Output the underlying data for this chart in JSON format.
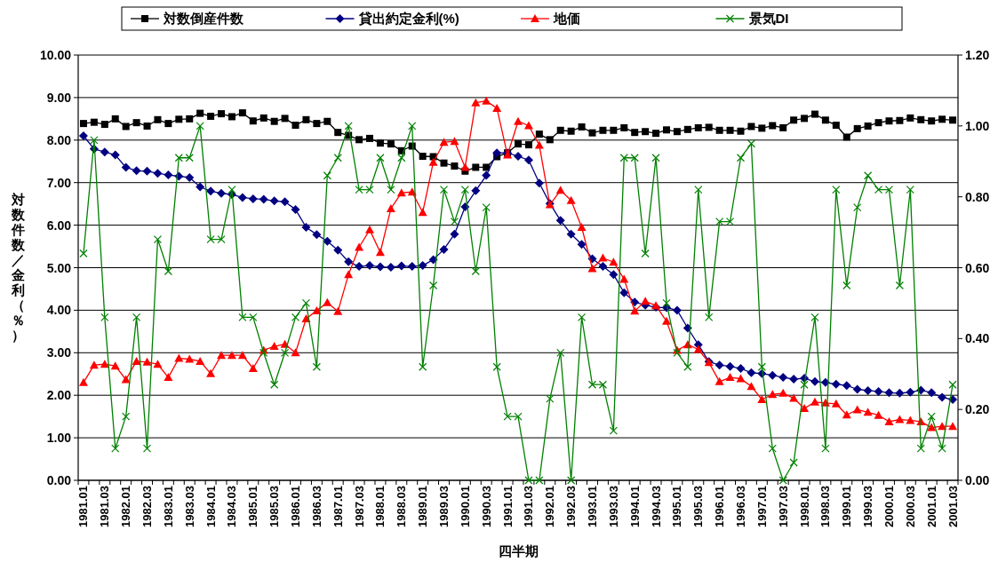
{
  "chart_data": {
    "type": "line",
    "xlabel": "四半期",
    "ylabel": "対数件数／金利（％）",
    "categories": [
      "1981.01",
      null,
      "1981.03",
      null,
      "1982.01",
      null,
      "1982.03",
      null,
      "1983.01",
      null,
      "1983.03",
      null,
      "1984.01",
      null,
      "1984.03",
      null,
      "1985.01",
      null,
      "1985.03",
      null,
      "1986.01",
      null,
      "1986.03",
      null,
      "1987.01",
      null,
      "1987.03",
      null,
      "1988.01",
      null,
      "1988.03",
      null,
      "1989.01",
      null,
      "1989.03",
      null,
      "1990.01",
      null,
      "1990.03",
      null,
      "1991.01",
      null,
      "1991.03",
      null,
      "1992.01",
      null,
      "1992.03",
      null,
      "1993.01",
      null,
      "1993.03",
      null,
      "1994.01",
      null,
      "1994.03",
      null,
      "1995.01",
      null,
      "1995.03",
      null,
      "1996.01",
      null,
      "1996.03",
      null,
      "1997.01",
      null,
      "1997.03",
      null,
      "1998.01",
      null,
      "1998.03",
      null,
      "1999.01",
      null,
      "1999.03",
      null,
      "2000.01",
      null,
      "2000.03",
      null,
      "2001.01",
      null,
      "2001.03"
    ],
    "series": [
      {
        "name": "対数倒産件数",
        "color": "#000000",
        "marker": "square",
        "values": [
          8.39,
          8.42,
          8.37,
          8.5,
          8.32,
          8.41,
          8.33,
          8.48,
          8.39,
          8.49,
          8.5,
          8.63,
          8.56,
          8.62,
          8.55,
          8.64,
          8.45,
          8.52,
          8.44,
          8.51,
          8.35,
          8.48,
          8.39,
          8.44,
          8.18,
          8.11,
          8.01,
          8.04,
          7.93,
          7.91,
          7.75,
          7.86,
          7.62,
          7.61,
          7.46,
          7.39,
          7.27,
          7.36,
          7.36,
          7.61,
          7.7,
          7.91,
          7.89,
          8.14,
          8.01,
          8.23,
          8.21,
          8.31,
          8.17,
          8.23,
          8.23,
          8.29,
          8.18,
          8.2,
          8.16,
          8.24,
          8.2,
          8.25,
          8.29,
          8.3,
          8.23,
          8.23,
          8.21,
          8.32,
          8.28,
          8.34,
          8.29,
          8.47,
          8.51,
          8.61,
          8.47,
          8.35,
          8.07,
          8.27,
          8.33,
          8.41,
          8.45,
          8.46,
          8.52,
          8.48,
          8.45,
          8.49,
          8.47
        ]
      },
      {
        "name": "貸出約定金利(%)",
        "color": "#000080",
        "marker": "diamond",
        "values": [
          8.1,
          7.79,
          7.72,
          7.65,
          7.36,
          7.28,
          7.27,
          7.22,
          7.18,
          7.15,
          7.12,
          6.9,
          6.8,
          6.75,
          6.72,
          6.65,
          6.62,
          6.61,
          6.57,
          6.55,
          6.37,
          5.95,
          5.78,
          5.62,
          5.41,
          5.14,
          5.03,
          5.05,
          5.02,
          5.01,
          5.04,
          5.03,
          5.05,
          5.19,
          5.43,
          5.79,
          6.43,
          6.81,
          7.17,
          7.7,
          7.7,
          7.62,
          7.53,
          6.99,
          6.51,
          6.11,
          5.79,
          5.55,
          5.21,
          5.03,
          4.84,
          4.41,
          4.19,
          4.12,
          4.07,
          4.06,
          4.0,
          3.58,
          3.19,
          2.79,
          2.71,
          2.68,
          2.63,
          2.53,
          2.51,
          2.47,
          2.42,
          2.38,
          2.4,
          2.32,
          2.3,
          2.26,
          2.23,
          2.14,
          2.11,
          2.09,
          2.06,
          2.05,
          2.07,
          2.12,
          2.06,
          1.95,
          1.9
        ]
      },
      {
        "name": "地価",
        "color": "#ff0000",
        "marker": "triangle",
        "values": [
          2.3,
          2.71,
          2.73,
          2.69,
          2.37,
          2.8,
          2.78,
          2.73,
          2.42,
          2.87,
          2.85,
          2.8,
          2.51,
          2.94,
          2.94,
          2.94,
          2.63,
          3.06,
          3.15,
          3.2,
          3.0,
          3.8,
          3.99,
          4.18,
          3.97,
          4.84,
          5.48,
          5.89,
          5.36,
          6.39,
          6.76,
          6.78,
          6.3,
          7.48,
          7.95,
          7.97,
          7.36,
          8.88,
          8.92,
          8.75,
          7.65,
          8.44,
          8.34,
          7.88,
          6.48,
          6.82,
          6.58,
          5.95,
          4.98,
          5.23,
          5.13,
          4.73,
          3.98,
          4.21,
          4.11,
          3.74,
          3.06,
          3.19,
          3.08,
          2.77,
          2.32,
          2.42,
          2.39,
          2.21,
          1.9,
          2.02,
          2.05,
          1.93,
          1.69,
          1.84,
          1.82,
          1.8,
          1.54,
          1.66,
          1.6,
          1.53,
          1.38,
          1.43,
          1.41,
          1.38,
          1.24,
          1.27,
          1.27
        ]
      },
      {
        "name": "景気DI",
        "color": "#008000",
        "marker": "cross",
        "axis": "y2",
        "values": [
          0.64,
          0.96,
          0.46,
          0.09,
          0.18,
          0.46,
          0.09,
          0.68,
          0.59,
          0.91,
          0.91,
          1.0,
          0.68,
          0.68,
          0.82,
          0.46,
          0.46,
          0.36,
          0.27,
          0.36,
          0.46,
          0.5,
          0.32,
          0.86,
          0.91,
          1.0,
          0.82,
          0.82,
          0.91,
          0.82,
          0.91,
          1.0,
          0.32,
          0.55,
          0.82,
          0.73,
          0.82,
          0.59,
          0.77,
          0.32,
          0.18,
          0.18,
          0,
          0,
          0.23,
          0.36,
          0,
          0.46,
          0.27,
          0.27,
          0.14,
          0.91,
          0.91,
          0.64,
          0.91,
          0.5,
          0.36,
          0.32,
          0.82,
          0.46,
          0.73,
          0.73,
          0.91,
          0.95,
          0.32,
          0.09,
          0,
          0.05,
          0.27,
          0.46,
          0.09,
          0.82,
          0.55,
          0.77,
          0.86,
          0.82,
          0.82,
          0.55,
          0.82,
          0.09,
          0.18,
          0.09,
          0.27
        ]
      }
    ],
    "ylim": [
      0,
      10
    ],
    "yticks": [
      {
        "value": 0,
        "label": "0.00"
      },
      {
        "value": 1,
        "label": "1.00"
      },
      {
        "value": 2,
        "label": "2.00"
      },
      {
        "value": 3,
        "label": "3.00"
      },
      {
        "value": 4,
        "label": "4.00"
      },
      {
        "value": 5,
        "label": "5.00"
      },
      {
        "value": 6,
        "label": "6.00"
      },
      {
        "value": 7,
        "label": "7.00"
      },
      {
        "value": 8,
        "label": "8.00"
      },
      {
        "value": 9,
        "label": "9.00"
      },
      {
        "value": 10,
        "label": "10.00"
      }
    ],
    "y2lim": [
      0,
      1.2
    ],
    "y2ticks": [
      {
        "value": 0,
        "label": "0.00"
      },
      {
        "value": 0.2,
        "label": "0.20"
      },
      {
        "value": 0.4,
        "label": "0.40"
      },
      {
        "value": 0.6,
        "label": "0.60"
      },
      {
        "value": 0.8,
        "label": "0.80"
      },
      {
        "value": 1.0,
        "label": "1.00"
      },
      {
        "value": 1.2,
        "label": "1.20"
      }
    ],
    "grid": "y",
    "legend": "top"
  }
}
